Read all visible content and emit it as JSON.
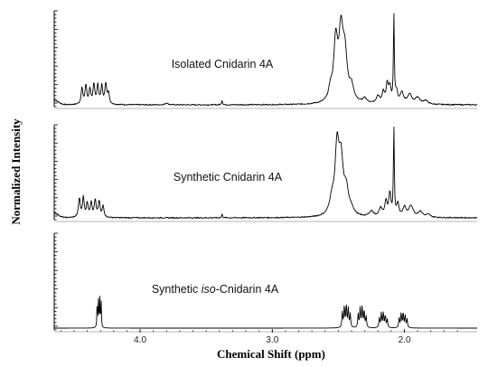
{
  "chart_data": {
    "type": "line",
    "xlabel": "Chemical Shift (ppm)",
    "ylabel": "Normalized Intensity",
    "xlim": [
      4.65,
      1.45
    ],
    "x_reversed": true,
    "x_ticks": [
      {
        "value": 4.0,
        "label": "4.0"
      },
      {
        "value": 3.0,
        "label": "3.0"
      },
      {
        "value": 2.0,
        "label": "2.0"
      }
    ],
    "grid": false,
    "series": [
      {
        "name": "Isolated Cnidarin 4A",
        "baseline": 0.0,
        "peaks": [
          {
            "x": 4.44,
            "y": 0.17,
            "w": 0.008
          },
          {
            "x": 4.41,
            "y": 0.2,
            "w": 0.008
          },
          {
            "x": 4.38,
            "y": 0.15,
            "w": 0.008
          },
          {
            "x": 4.35,
            "y": 0.21,
            "w": 0.008
          },
          {
            "x": 4.32,
            "y": 0.2,
            "w": 0.008
          },
          {
            "x": 4.29,
            "y": 0.19,
            "w": 0.008
          },
          {
            "x": 4.26,
            "y": 0.21,
            "w": 0.008
          },
          {
            "x": 4.24,
            "y": 0.12,
            "w": 0.008
          },
          {
            "x": 3.8,
            "y": 0.02,
            "w": 0.012
          },
          {
            "x": 3.38,
            "y": 0.05,
            "w": 0.004
          },
          {
            "x": 2.52,
            "y": 0.62,
            "w": 0.018
          },
          {
            "x": 2.48,
            "y": 0.7,
            "w": 0.02
          },
          {
            "x": 2.45,
            "y": 0.45,
            "w": 0.02
          },
          {
            "x": 2.4,
            "y": 0.15,
            "w": 0.02
          },
          {
            "x": 2.56,
            "y": 0.12,
            "w": 0.015
          },
          {
            "x": 2.3,
            "y": 0.05,
            "w": 0.02
          },
          {
            "x": 2.2,
            "y": 0.08,
            "w": 0.015
          },
          {
            "x": 2.16,
            "y": 0.12,
            "w": 0.01
          },
          {
            "x": 2.13,
            "y": 0.2,
            "w": 0.01
          },
          {
            "x": 2.11,
            "y": 0.16,
            "w": 0.01
          },
          {
            "x": 2.08,
            "y": 0.93,
            "w": 0.004
          },
          {
            "x": 2.06,
            "y": 0.12,
            "w": 0.01
          },
          {
            "x": 2.02,
            "y": 0.12,
            "w": 0.015
          },
          {
            "x": 1.96,
            "y": 0.1,
            "w": 0.02
          },
          {
            "x": 1.9,
            "y": 0.07,
            "w": 0.02
          },
          {
            "x": 1.84,
            "y": 0.04,
            "w": 0.02
          }
        ]
      },
      {
        "name": "Synthetic Cnidarin 4A",
        "baseline": 0.0,
        "peaks": [
          {
            "x": 4.46,
            "y": 0.2,
            "w": 0.008
          },
          {
            "x": 4.43,
            "y": 0.21,
            "w": 0.008
          },
          {
            "x": 4.4,
            "y": 0.15,
            "w": 0.008
          },
          {
            "x": 4.37,
            "y": 0.16,
            "w": 0.008
          },
          {
            "x": 4.34,
            "y": 0.18,
            "w": 0.008
          },
          {
            "x": 4.31,
            "y": 0.17,
            "w": 0.008
          },
          {
            "x": 4.28,
            "y": 0.12,
            "w": 0.008
          },
          {
            "x": 3.38,
            "y": 0.04,
            "w": 0.004
          },
          {
            "x": 2.55,
            "y": 0.15,
            "w": 0.02
          },
          {
            "x": 2.51,
            "y": 0.7,
            "w": 0.018
          },
          {
            "x": 2.48,
            "y": 0.55,
            "w": 0.02
          },
          {
            "x": 2.44,
            "y": 0.25,
            "w": 0.02
          },
          {
            "x": 2.4,
            "y": 0.06,
            "w": 0.02
          },
          {
            "x": 2.25,
            "y": 0.06,
            "w": 0.02
          },
          {
            "x": 2.18,
            "y": 0.09,
            "w": 0.015
          },
          {
            "x": 2.14,
            "y": 0.16,
            "w": 0.01
          },
          {
            "x": 2.11,
            "y": 0.24,
            "w": 0.01
          },
          {
            "x": 2.08,
            "y": 0.95,
            "w": 0.004
          },
          {
            "x": 2.05,
            "y": 0.14,
            "w": 0.01
          },
          {
            "x": 2.0,
            "y": 0.1,
            "w": 0.015
          },
          {
            "x": 1.95,
            "y": 0.12,
            "w": 0.02
          },
          {
            "x": 1.88,
            "y": 0.06,
            "w": 0.02
          },
          {
            "x": 1.82,
            "y": 0.03,
            "w": 0.02
          }
        ]
      },
      {
        "name": "Synthetic iso-Cnidarin 4A",
        "name_parts": [
          "Synthetic ",
          "iso",
          "-Cnidarin 4A"
        ],
        "baseline": 0.0,
        "peaks": [
          {
            "x": 4.325,
            "y": 0.28,
            "w": 0.0025
          },
          {
            "x": 4.315,
            "y": 0.3,
            "w": 0.0025
          },
          {
            "x": 4.305,
            "y": 0.3,
            "w": 0.0025
          },
          {
            "x": 4.295,
            "y": 0.28,
            "w": 0.0025
          },
          {
            "x": 2.47,
            "y": 0.16,
            "w": 0.004
          },
          {
            "x": 2.455,
            "y": 0.22,
            "w": 0.004
          },
          {
            "x": 2.44,
            "y": 0.24,
            "w": 0.004
          },
          {
            "x": 2.425,
            "y": 0.2,
            "w": 0.004
          },
          {
            "x": 2.41,
            "y": 0.14,
            "w": 0.004
          },
          {
            "x": 2.35,
            "y": 0.14,
            "w": 0.004
          },
          {
            "x": 2.335,
            "y": 0.2,
            "w": 0.004
          },
          {
            "x": 2.32,
            "y": 0.22,
            "w": 0.004
          },
          {
            "x": 2.305,
            "y": 0.18,
            "w": 0.004
          },
          {
            "x": 2.29,
            "y": 0.12,
            "w": 0.004
          },
          {
            "x": 2.19,
            "y": 0.1,
            "w": 0.004
          },
          {
            "x": 2.175,
            "y": 0.15,
            "w": 0.004
          },
          {
            "x": 2.16,
            "y": 0.16,
            "w": 0.004
          },
          {
            "x": 2.145,
            "y": 0.13,
            "w": 0.004
          },
          {
            "x": 2.13,
            "y": 0.09,
            "w": 0.004
          },
          {
            "x": 2.04,
            "y": 0.1,
            "w": 0.004
          },
          {
            "x": 2.025,
            "y": 0.15,
            "w": 0.004
          },
          {
            "x": 2.01,
            "y": 0.16,
            "w": 0.004
          },
          {
            "x": 1.995,
            "y": 0.13,
            "w": 0.004
          },
          {
            "x": 1.98,
            "y": 0.09,
            "w": 0.004
          }
        ]
      }
    ]
  }
}
